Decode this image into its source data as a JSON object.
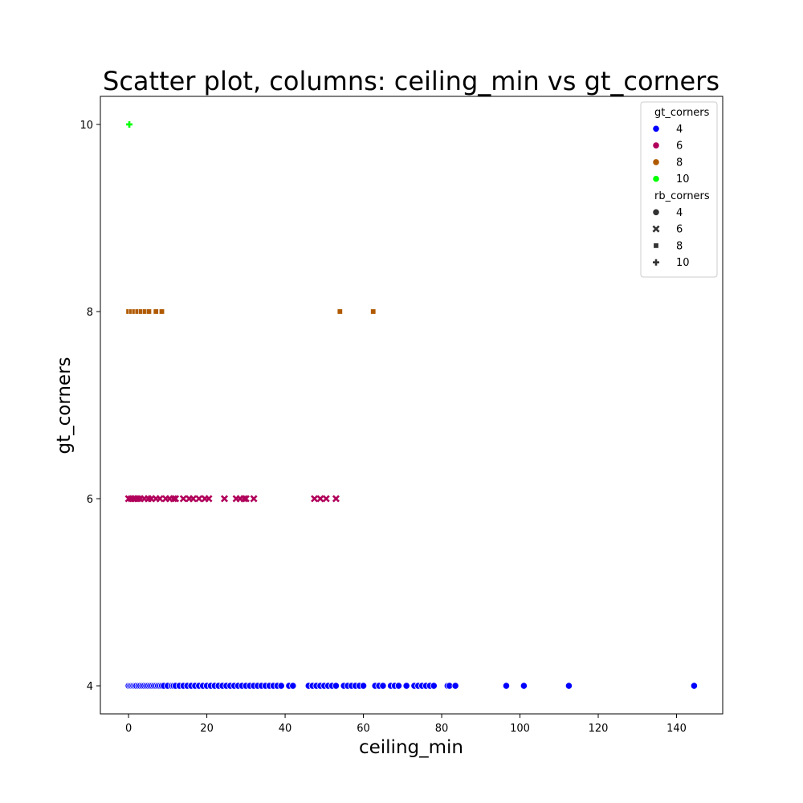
{
  "chart_data": {
    "type": "scatter",
    "title": "Scatter plot, columns: ceiling_min vs gt_corners",
    "xlabel": "ceiling_min",
    "ylabel": "gt_corners",
    "xlim": [
      -7.2,
      151.8
    ],
    "ylim": [
      3.7,
      10.3
    ],
    "xticks": [
      0,
      20,
      40,
      60,
      80,
      100,
      120,
      140
    ],
    "yticks": [
      4,
      6,
      8,
      10
    ],
    "grid": false,
    "legend": {
      "placement": "top-right",
      "hue_title": "gt_corners",
      "hue_entries": [
        {
          "label": "4",
          "color": "#0000ff"
        },
        {
          "label": "6",
          "color": "#b0005a"
        },
        {
          "label": "8",
          "color": "#b05a00"
        },
        {
          "label": "10",
          "color": "#00ff00"
        }
      ],
      "style_title": "rb_corners",
      "style_entries": [
        {
          "label": "4",
          "marker": "circle"
        },
        {
          "label": "6",
          "marker": "x"
        },
        {
          "label": "8",
          "marker": "square"
        },
        {
          "label": "10",
          "marker": "plus"
        }
      ]
    },
    "series": [
      {
        "name": "4",
        "color": "#0000ff",
        "marker": "circle",
        "y": 4,
        "x": [
          0,
          0.4,
          0.8,
          1.2,
          1.6,
          2,
          2.5,
          3,
          3.5,
          4,
          4.5,
          5,
          5.5,
          6,
          6.5,
          7,
          7.5,
          8,
          8.5,
          9,
          10,
          11,
          11.5,
          12,
          13,
          14,
          15,
          16,
          17,
          18,
          19,
          20,
          21,
          22,
          23,
          24,
          25,
          26,
          27,
          28,
          29,
          30,
          31,
          32,
          33,
          34,
          35,
          36,
          37,
          38,
          39,
          41,
          42,
          46,
          47,
          48,
          49,
          50,
          51,
          52,
          53,
          55,
          56,
          57,
          58,
          59,
          60,
          63,
          64,
          65,
          67,
          68,
          69,
          71,
          73,
          74,
          75,
          76,
          77,
          78,
          81.5,
          82,
          83.5,
          96.5,
          101,
          112.5,
          144.5
        ]
      },
      {
        "name": "6",
        "color": "#b0005a",
        "marker": "x",
        "y": 6,
        "x": [
          0,
          0.7,
          1.5,
          2.3,
          3,
          4,
          5,
          5.8,
          7,
          8,
          9.5,
          10.5,
          11.5,
          12,
          14,
          15.5,
          16.5,
          18,
          19.5,
          20.5,
          24.5,
          27.5,
          28.5,
          29.5,
          30,
          32,
          47.5,
          49,
          50.5,
          53
        ]
      },
      {
        "name": "8",
        "color": "#b05a00",
        "marker": "square",
        "y": 8,
        "x": [
          0,
          0.7,
          1.5,
          2.3,
          3.2,
          4.2,
          5.2,
          7,
          8.5,
          54,
          62.5
        ]
      },
      {
        "name": "10",
        "color": "#00ff00",
        "marker": "plus",
        "y": 10,
        "x": [
          0.2
        ]
      }
    ]
  }
}
